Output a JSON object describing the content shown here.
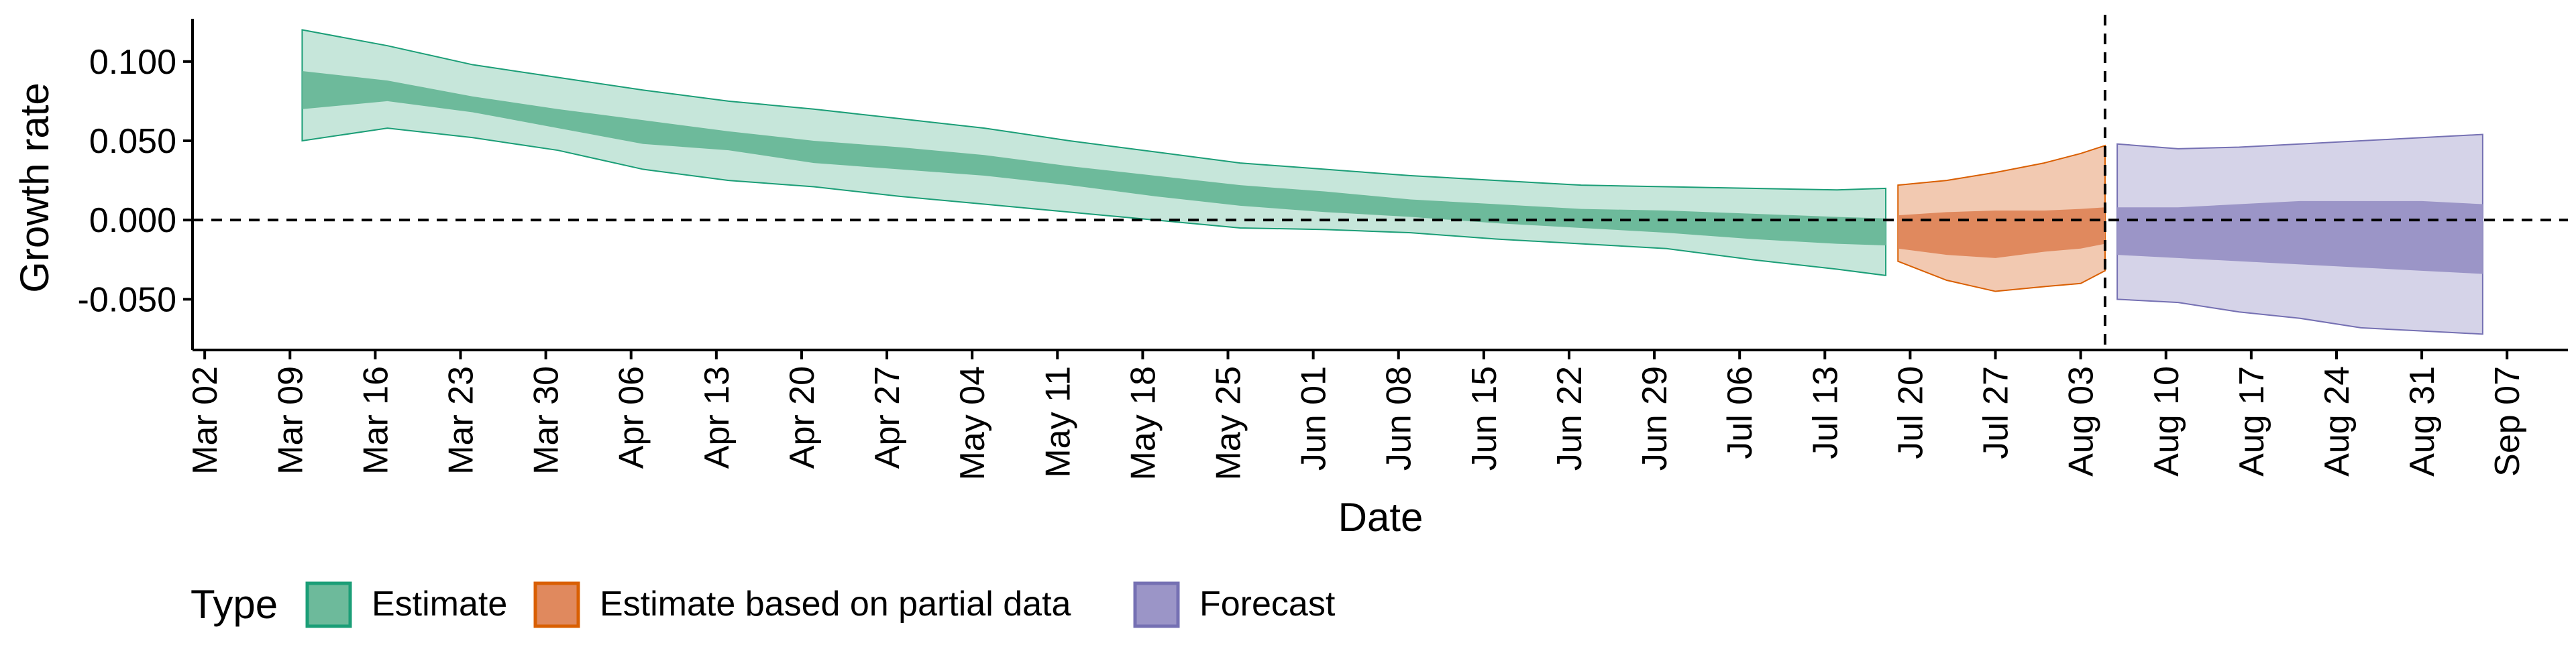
{
  "chart_data": {
    "type": "area",
    "title": "",
    "xlabel": "Date",
    "ylabel": "Growth rate",
    "ylim": [
      -0.082,
      0.127
    ],
    "y_ticks": [
      {
        "value": -0.05,
        "label": "-0.050"
      },
      {
        "value": 0.0,
        "label": "0.000"
      },
      {
        "value": 0.05,
        "label": "0.050"
      },
      {
        "value": 0.1,
        "label": "0.100"
      }
    ],
    "x_range": [
      "2020-03-01",
      "2020-09-12"
    ],
    "x_ticks": [
      {
        "date": "2020-03-02",
        "label": "Mar 02"
      },
      {
        "date": "2020-03-09",
        "label": "Mar 09"
      },
      {
        "date": "2020-03-16",
        "label": "Mar 16"
      },
      {
        "date": "2020-03-23",
        "label": "Mar 23"
      },
      {
        "date": "2020-03-30",
        "label": "Mar 30"
      },
      {
        "date": "2020-04-06",
        "label": "Apr 06"
      },
      {
        "date": "2020-04-13",
        "label": "Apr 13"
      },
      {
        "date": "2020-04-20",
        "label": "Apr 20"
      },
      {
        "date": "2020-04-27",
        "label": "Apr 27"
      },
      {
        "date": "2020-05-04",
        "label": "May 04"
      },
      {
        "date": "2020-05-11",
        "label": "May 11"
      },
      {
        "date": "2020-05-18",
        "label": "May 18"
      },
      {
        "date": "2020-05-25",
        "label": "May 25"
      },
      {
        "date": "2020-06-01",
        "label": "Jun 01"
      },
      {
        "date": "2020-06-08",
        "label": "Jun 08"
      },
      {
        "date": "2020-06-15",
        "label": "Jun 15"
      },
      {
        "date": "2020-06-22",
        "label": "Jun 22"
      },
      {
        "date": "2020-06-29",
        "label": "Jun 29"
      },
      {
        "date": "2020-07-06",
        "label": "Jul 06"
      },
      {
        "date": "2020-07-13",
        "label": "Jul 13"
      },
      {
        "date": "2020-07-20",
        "label": "Jul 20"
      },
      {
        "date": "2020-07-27",
        "label": "Jul 27"
      },
      {
        "date": "2020-08-03",
        "label": "Aug 03"
      },
      {
        "date": "2020-08-10",
        "label": "Aug 10"
      },
      {
        "date": "2020-08-17",
        "label": "Aug 17"
      },
      {
        "date": "2020-08-24",
        "label": "Aug 24"
      },
      {
        "date": "2020-08-31",
        "label": "Aug 31"
      },
      {
        "date": "2020-09-07",
        "label": "Sep 07"
      }
    ],
    "reference_lines": {
      "horizontal_y": 0.0,
      "vertical_date": "2020-08-05",
      "style": "dashed"
    },
    "legend": {
      "title": "Type",
      "position": "bottom",
      "entries": [
        "Estimate",
        "Estimate based on partial data",
        "Forecast"
      ]
    },
    "grid": false,
    "series": [
      {
        "name": "Estimate",
        "color": "#1b9e77",
        "fill_outer": "#c6e6da",
        "fill_inner": "#6dba9b",
        "x": [
          "2020-03-10",
          "2020-03-17",
          "2020-03-24",
          "2020-03-31",
          "2020-04-07",
          "2020-04-14",
          "2020-04-21",
          "2020-04-28",
          "2020-05-05",
          "2020-05-12",
          "2020-05-19",
          "2020-05-26",
          "2020-06-02",
          "2020-06-09",
          "2020-06-16",
          "2020-06-23",
          "2020-06-30",
          "2020-07-07",
          "2020-07-14",
          "2020-07-18"
        ],
        "outer_lower": [
          0.05,
          0.058,
          0.052,
          0.044,
          0.032,
          0.025,
          0.021,
          0.015,
          0.01,
          0.005,
          0.0,
          -0.005,
          -0.006,
          -0.008,
          -0.012,
          -0.015,
          -0.018,
          -0.025,
          -0.031,
          -0.035
        ],
        "inner_lower": [
          0.07,
          0.075,
          0.068,
          0.058,
          0.048,
          0.044,
          0.036,
          0.032,
          0.028,
          0.022,
          0.015,
          0.009,
          0.005,
          0.002,
          -0.002,
          -0.005,
          -0.008,
          -0.012,
          -0.015,
          -0.016
        ],
        "inner_upper": [
          0.094,
          0.088,
          0.078,
          0.07,
          0.063,
          0.056,
          0.05,
          0.046,
          0.041,
          0.034,
          0.028,
          0.022,
          0.018,
          0.013,
          0.01,
          0.007,
          0.006,
          0.004,
          0.002,
          0.001
        ],
        "outer_upper": [
          0.12,
          0.11,
          0.098,
          0.09,
          0.082,
          0.075,
          0.07,
          0.064,
          0.058,
          0.05,
          0.043,
          0.036,
          0.032,
          0.028,
          0.025,
          0.022,
          0.021,
          0.02,
          0.019,
          0.02
        ]
      },
      {
        "name": "Estimate based on partial data",
        "color": "#d95f02",
        "fill_outer": "#f2c9b1",
        "fill_inner": "#e0895e",
        "x": [
          "2020-07-19",
          "2020-07-23",
          "2020-07-27",
          "2020-07-31",
          "2020-08-03",
          "2020-08-05"
        ],
        "outer_lower": [
          -0.026,
          -0.038,
          -0.045,
          -0.042,
          -0.04,
          -0.032
        ],
        "inner_lower": [
          -0.018,
          -0.022,
          -0.024,
          -0.02,
          -0.018,
          -0.015
        ],
        "inner_upper": [
          0.003,
          0.005,
          0.006,
          0.006,
          0.007,
          0.008
        ],
        "outer_upper": [
          0.022,
          0.025,
          0.03,
          0.036,
          0.042,
          0.047
        ]
      },
      {
        "name": "Forecast",
        "color": "#7570b3",
        "fill_outer": "#d5d3e8",
        "fill_inner": "#9b95c7",
        "x": [
          "2020-08-06",
          "2020-08-11",
          "2020-08-16",
          "2020-08-21",
          "2020-08-26",
          "2020-08-31",
          "2020-09-05"
        ],
        "outer_lower": [
          -0.05,
          -0.052,
          -0.058,
          -0.062,
          -0.068,
          -0.07,
          -0.072
        ],
        "inner_lower": [
          -0.022,
          -0.024,
          -0.026,
          -0.028,
          -0.03,
          -0.032,
          -0.034
        ],
        "inner_upper": [
          0.008,
          0.008,
          0.01,
          0.012,
          0.012,
          0.012,
          0.01
        ],
        "outer_upper": [
          0.048,
          0.045,
          0.046,
          0.048,
          0.05,
          0.052,
          0.054
        ]
      }
    ]
  }
}
